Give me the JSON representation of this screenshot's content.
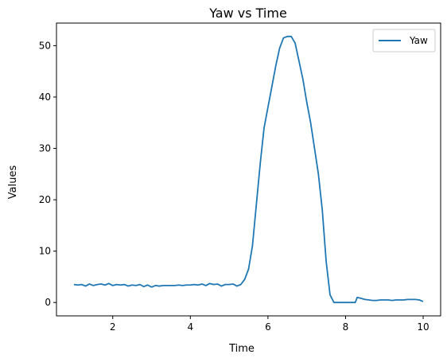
{
  "chart_data": {
    "type": "line",
    "title": "Yaw vs Time",
    "xlabel": "Time",
    "ylabel": "Values",
    "xlim": [
      0.55,
      10.45
    ],
    "ylim": [
      -2.6,
      54.4
    ],
    "xticks": [
      2,
      4,
      6,
      8,
      10
    ],
    "yticks": [
      0,
      10,
      20,
      30,
      40,
      50
    ],
    "grid": false,
    "legend_position": "top-right",
    "series": [
      {
        "name": "Yaw",
        "color": "#1f77b4",
        "x": [
          1.0,
          1.1,
          1.2,
          1.3,
          1.4,
          1.5,
          1.6,
          1.7,
          1.8,
          1.9,
          2.0,
          2.1,
          2.2,
          2.3,
          2.4,
          2.5,
          2.6,
          2.7,
          2.8,
          2.9,
          3.0,
          3.1,
          3.2,
          3.3,
          3.4,
          3.5,
          3.6,
          3.7,
          3.8,
          3.9,
          4.0,
          4.1,
          4.2,
          4.3,
          4.4,
          4.5,
          4.6,
          4.7,
          4.8,
          4.9,
          5.0,
          5.1,
          5.2,
          5.3,
          5.4,
          5.5,
          5.6,
          5.7,
          5.8,
          5.9,
          6.0,
          6.1,
          6.2,
          6.3,
          6.4,
          6.5,
          6.6,
          6.7,
          6.8,
          6.9,
          7.0,
          7.1,
          7.2,
          7.3,
          7.4,
          7.5,
          7.6,
          7.7,
          7.8,
          7.9,
          8.0,
          8.1,
          8.2,
          8.25,
          8.3,
          8.4,
          8.5,
          8.6,
          8.7,
          8.8,
          8.9,
          9.0,
          9.1,
          9.2,
          9.3,
          9.4,
          9.5,
          9.6,
          9.7,
          9.8,
          9.9,
          10.0
        ],
        "y": [
          3.5,
          3.4,
          3.5,
          3.2,
          3.6,
          3.3,
          3.5,
          3.6,
          3.4,
          3.7,
          3.3,
          3.5,
          3.4,
          3.5,
          3.2,
          3.4,
          3.3,
          3.5,
          3.1,
          3.4,
          3.0,
          3.3,
          3.2,
          3.3,
          3.3,
          3.3,
          3.3,
          3.4,
          3.3,
          3.4,
          3.4,
          3.5,
          3.4,
          3.6,
          3.3,
          3.7,
          3.5,
          3.6,
          3.2,
          3.5,
          3.5,
          3.6,
          3.2,
          3.5,
          4.5,
          6.5,
          11.0,
          19.0,
          27.0,
          34.0,
          38.0,
          42.0,
          46.0,
          49.5,
          51.5,
          51.8,
          51.8,
          50.5,
          47.0,
          43.5,
          39.0,
          35.0,
          30.0,
          25.0,
          18.0,
          8.0,
          1.5,
          0.0,
          0.0,
          0.0,
          0.0,
          0.0,
          0.0,
          0.0,
          1.0,
          0.8,
          0.6,
          0.5,
          0.4,
          0.4,
          0.5,
          0.5,
          0.5,
          0.4,
          0.5,
          0.5,
          0.5,
          0.6,
          0.6,
          0.6,
          0.5,
          0.2
        ]
      }
    ]
  }
}
